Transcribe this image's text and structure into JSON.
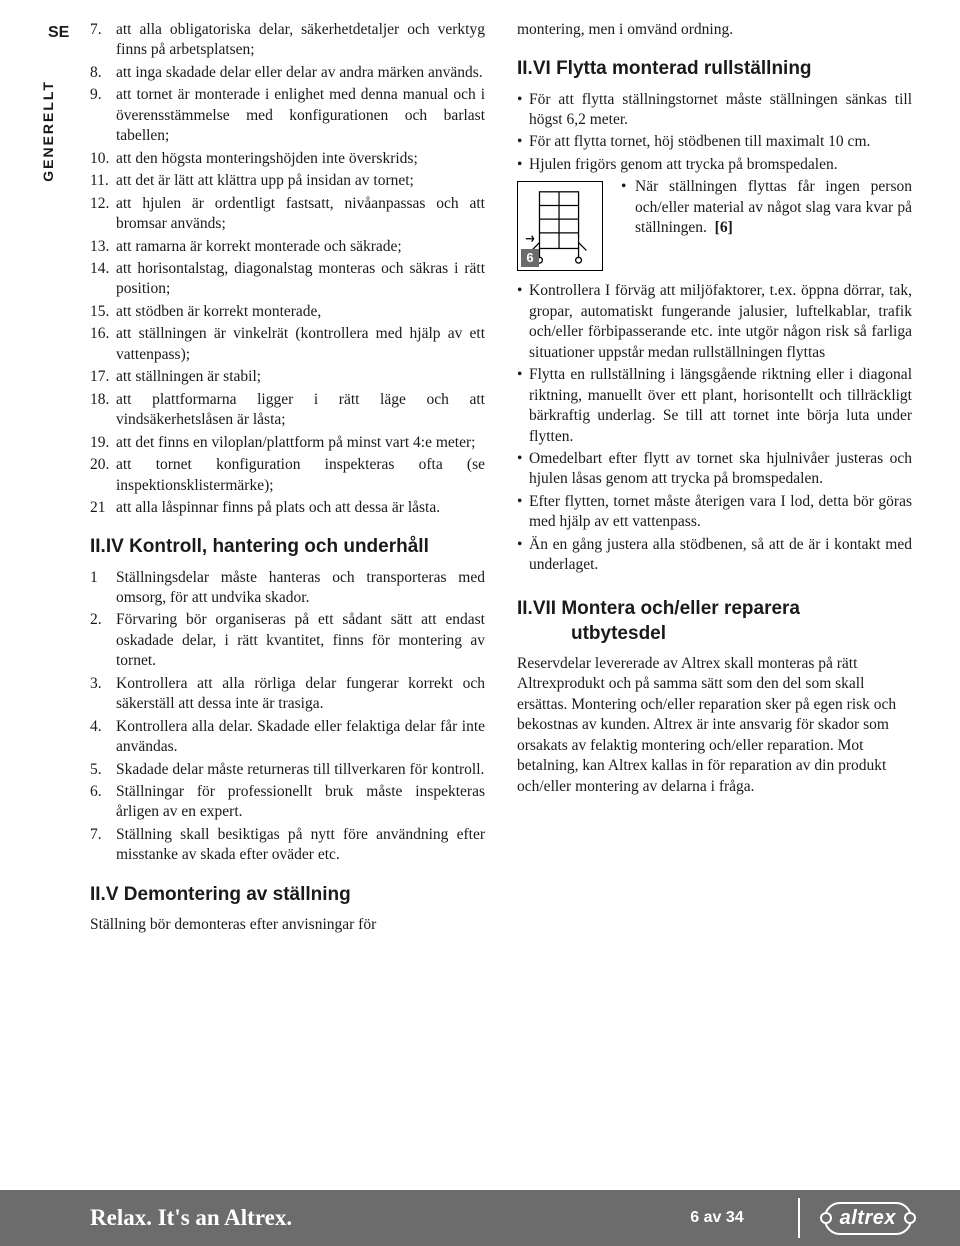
{
  "lang_code": "SE",
  "sidebar_vertical": "GENERELLT",
  "left": {
    "items_a": [
      {
        "n": "7.",
        "t": "att alla obligatoriska delar, säkerhetdetaljer och verktyg finns på arbetsplatsen;"
      },
      {
        "n": "8.",
        "t": "att inga skadade delar eller delar av andra märken används."
      },
      {
        "n": "9.",
        "t": "att tornet är monterade i enlighet med denna manual och i överensstämmelse med konfigurationen och barlast tabellen;"
      },
      {
        "n": "10.",
        "t": "att den högsta monteringshöjden inte överskrids;"
      },
      {
        "n": "11.",
        "t": "att det är lätt att klättra upp på insidan av tornet;"
      },
      {
        "n": "12.",
        "t": "att hjulen är ordentligt fastsatt, nivåanpassas och att bromsar används;"
      },
      {
        "n": "13.",
        "t": "att ramarna är korrekt monterade och säkrade;"
      },
      {
        "n": "14.",
        "t": "att horisontalstag, diagonalstag monteras och säkras i rätt position;"
      },
      {
        "n": "15.",
        "t": "att stödben är korrekt monterade,"
      },
      {
        "n": "16.",
        "t": "att ställningen är vinkelrät (kontrollera med hjälp av ett vattenpass);"
      },
      {
        "n": "17.",
        "t": "att ställningen är stabil;"
      },
      {
        "n": "18.",
        "t": "att plattformarna ligger i rätt läge och att vindsäkerhetslåsen är låsta;"
      },
      {
        "n": "19.",
        "t": "att det finns en viloplan/plattform på minst vart 4:e meter;"
      },
      {
        "n": "20.",
        "t": "att tornet konfiguration inspekteras ofta (se inspektionsklistermärke);"
      },
      {
        "n": "21",
        "t": "att alla låspinnar finns på plats och att dessa är låsta."
      }
    ],
    "h_iv": "II.IV Kontroll, hantering och underhåll",
    "items_b": [
      {
        "n": "1",
        "t": "Ställningsdelar måste hanteras och transporteras med omsorg, för att undvika skador."
      },
      {
        "n": "2.",
        "t": "Förvaring bör organiseras på ett sådant sätt att endast oskadade delar, i rätt kvantitet, finns för montering av tornet."
      },
      {
        "n": "3.",
        "t": "Kontrollera att alla rörliga delar fungerar korrekt och säkerställ att dessa inte är trasiga."
      },
      {
        "n": "4.",
        "t": "Kontrollera alla delar. Skadade eller felaktiga delar får inte användas."
      },
      {
        "n": "5.",
        "t": "Skadade delar måste returneras till tillverkaren för kontroll."
      },
      {
        "n": "6.",
        "t": "Ställningar för professionellt bruk måste inspekteras årligen av en expert."
      },
      {
        "n": "7.",
        "t": "Ställning skall besiktigas på nytt före användning efter misstanke av skada efter oväder etc."
      }
    ],
    "h_v": "II.V  Demontering av ställning",
    "v_text": "Ställning bör demonteras efter anvisningar för"
  },
  "right": {
    "top_line": "montering, men i omvänd ordning.",
    "h_vi": "II.VI  Flytta monterad rullställning",
    "bullets_a": [
      "För att flytta ställningstornet måste ställningen sänkas till högst 6,2 meter.",
      "För att flytta tornet, höj stödbenen till maximalt 10 cm.",
      "Hjulen frigörs genom att trycka på bromspedalen."
    ],
    "wrap_bullet": "När ställningen flyttas får ingen person och/eller material av något slag vara kvar på ställningen.  [6]",
    "figure_num": "6",
    "bullets_b": [
      "Kontrollera I förväg att miljöfaktorer, t.ex. öppna dörrar, tak, gropar, automatiskt fungerande jalusier, luftelkablar, trafik och/eller förbipasserande etc. inte utgör någon risk så farliga situationer uppstår medan rullställningen flyttas",
      "Flytta en rullställning i längsgående riktning eller i diagonal riktning, manuellt över ett plant, horisontellt och tillräckligt bärkraftig underlag. Se till att tornet inte börja luta under flytten.",
      "Omedelbart efter flytt av tornet ska hjulnivåer justeras och hjulen låsas genom att trycka på bromspedalen.",
      "Efter flytten, tornet måste återigen vara I lod, detta bör göras med hjälp av ett vattenpass.",
      "Än en gång justera alla stödbenen, så att de är i kontakt med underlaget."
    ],
    "h_vii_l1": "II.VII  Montera och/eller reparera",
    "h_vii_l2": "utbytesdel",
    "vii_text": "Reservdelar levererade av Altrex skall monteras på rätt Altrexprodukt och på samma sätt som den del som skall ersättas. Montering och/eller reparation sker på egen risk och bekostnas av kunden. Altrex är inte ansvarig för skador som orsakats av felaktig montering och/eller reparation. Mot betalning, kan Altrex kallas in för reparation av din produkt och/eller montering av delarna i fråga."
  },
  "footer": {
    "slogan": "Relax. It's an Altrex.",
    "page": "6 av 34",
    "logo": "altrex"
  }
}
